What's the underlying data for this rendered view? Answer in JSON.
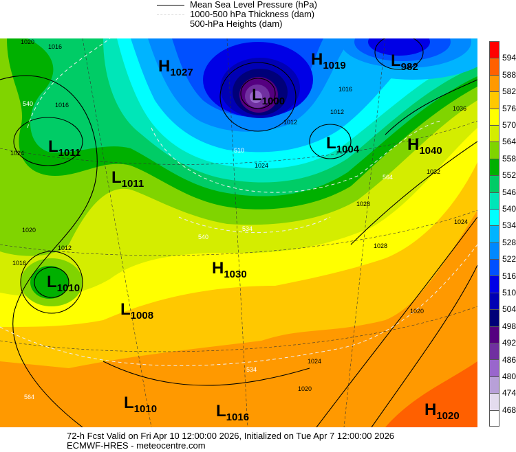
{
  "legend": {
    "items": [
      {
        "label": "Mean Sea Level Pressure (hPa)",
        "style": "solid-black"
      },
      {
        "label": "1000-500 hPa Thickness (dam)",
        "style": "dashed-white"
      },
      {
        "label": "500-hPa Heights (dam)",
        "style": "none"
      }
    ]
  },
  "colorbar": {
    "labels": [
      "594",
      "588",
      "582",
      "576",
      "570",
      "564",
      "558",
      "552",
      "546",
      "540",
      "534",
      "528",
      "522",
      "516",
      "510",
      "504",
      "498",
      "492",
      "486",
      "480",
      "474",
      "468"
    ],
    "colors": [
      "#ff0000",
      "#ff6000",
      "#ff9900",
      "#ffc800",
      "#ffff00",
      "#d4ed00",
      "#80d400",
      "#00b000",
      "#00cc66",
      "#00e6b8",
      "#00ffff",
      "#00b4ff",
      "#0088ff",
      "#0050ff",
      "#0000e6",
      "#0000b4",
      "#000078",
      "#550080",
      "#7030a0",
      "#9966cc",
      "#b8a0d8",
      "#e4dcee",
      "#ffffff"
    ]
  },
  "pressure_systems": [
    {
      "type": "H",
      "value": "1027"
    },
    {
      "type": "H",
      "value": "1019"
    },
    {
      "type": "L",
      "value": "982"
    },
    {
      "type": "L",
      "value": "1000"
    },
    {
      "type": "L",
      "value": "1011"
    },
    {
      "type": "L",
      "value": "1011"
    },
    {
      "type": "L",
      "value": "1004"
    },
    {
      "type": "H",
      "value": "1040"
    },
    {
      "type": "H",
      "value": "1030"
    },
    {
      "type": "L",
      "value": "1010"
    },
    {
      "type": "L",
      "value": "1008"
    },
    {
      "type": "L",
      "value": "1010"
    },
    {
      "type": "L",
      "value": "1016"
    },
    {
      "type": "H",
      "value": "1020"
    }
  ],
  "contour_labels": [
    "1020",
    "1016",
    "1016",
    "1024",
    "1020",
    "1016",
    "1012",
    "1012",
    "1016",
    "1028",
    "1036",
    "1032",
    "1024",
    "1028",
    "1020",
    "1024",
    "1020",
    "1012",
    "1024",
    "510",
    "534",
    "540",
    "540",
    "564",
    "564",
    "534"
  ],
  "footer": {
    "line1": "72-h Fcst Valid on Fri Apr 10 12:00:00 2026, Initialized on Tue Apr  7 12:00:00 2026",
    "line2": "ECMWF-HRES  - meteocentre.com"
  }
}
